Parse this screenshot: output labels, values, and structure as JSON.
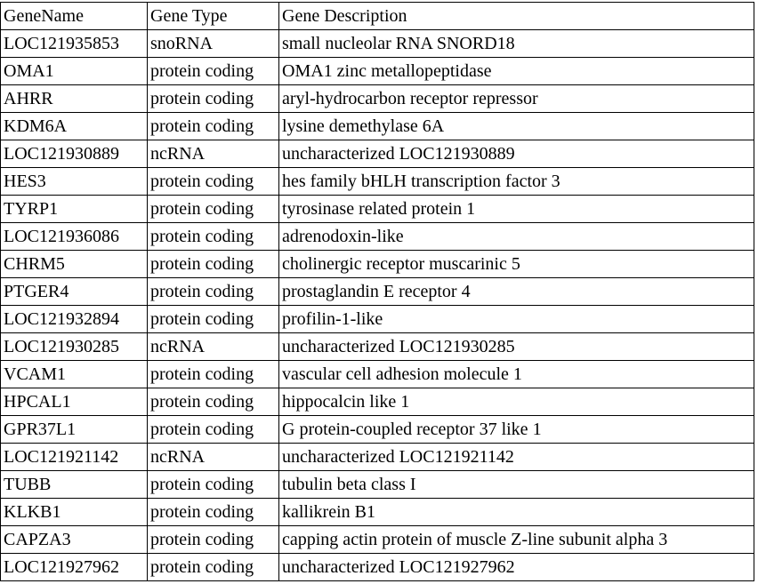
{
  "table": {
    "headers": [
      "GeneName",
      "Gene Type",
      "Gene Description"
    ],
    "rows": [
      [
        "LOC121935853",
        "snoRNA",
        "small nucleolar RNA SNORD18"
      ],
      [
        "OMA1",
        "protein coding",
        "OMA1 zinc metallopeptidase"
      ],
      [
        "AHRR",
        "protein coding",
        "aryl-hydrocarbon receptor repressor"
      ],
      [
        "KDM6A",
        "protein coding",
        "lysine demethylase 6A"
      ],
      [
        "LOC121930889",
        "ncRNA",
        "uncharacterized LOC121930889"
      ],
      [
        "HES3",
        "protein coding",
        "hes family bHLH transcription factor 3"
      ],
      [
        "TYRP1",
        "protein coding",
        "tyrosinase related protein 1"
      ],
      [
        "LOC121936086",
        "protein coding",
        "adrenodoxin-like"
      ],
      [
        "CHRM5",
        "protein coding",
        "cholinergic receptor muscarinic 5"
      ],
      [
        "PTGER4",
        "protein coding",
        "prostaglandin E receptor 4"
      ],
      [
        "LOC121932894",
        "protein coding",
        "profilin-1-like"
      ],
      [
        "LOC121930285",
        "ncRNA",
        "uncharacterized LOC121930285"
      ],
      [
        "VCAM1",
        "protein coding",
        "vascular cell adhesion molecule 1"
      ],
      [
        "HPCAL1",
        "protein coding",
        "hippocalcin like 1"
      ],
      [
        "GPR37L1",
        "protein coding",
        "G protein-coupled receptor 37 like 1"
      ],
      [
        "LOC121921142",
        "ncRNA",
        "uncharacterized LOC121921142"
      ],
      [
        "TUBB",
        "protein coding",
        "tubulin beta class I"
      ],
      [
        "KLKB1",
        "protein coding",
        "kallikrein B1"
      ],
      [
        "CAPZA3",
        "protein coding",
        "capping actin protein of muscle Z-line subunit alpha 3"
      ],
      [
        "LOC121927962",
        "protein coding",
        "uncharacterized LOC121927962"
      ]
    ]
  }
}
